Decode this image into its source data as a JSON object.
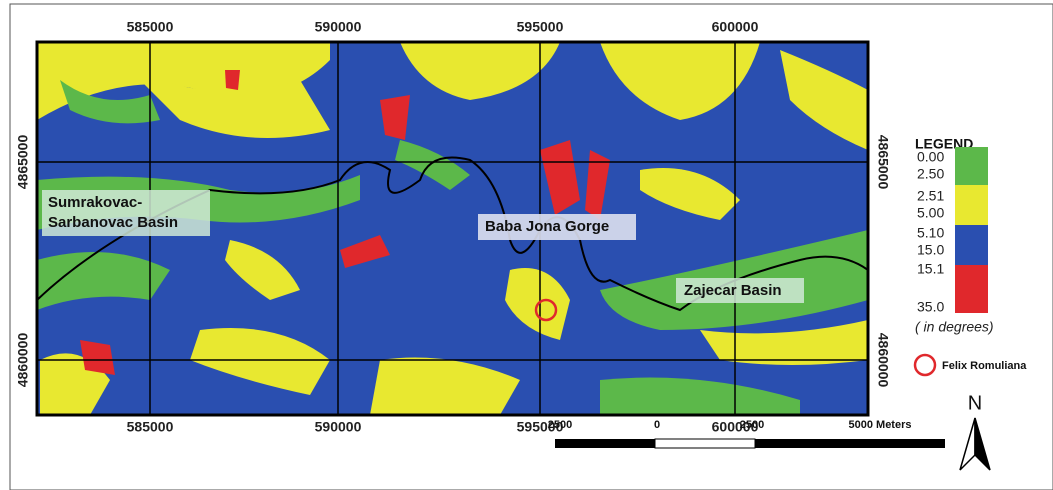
{
  "map": {
    "x_ticks_top": [
      "585000",
      "590000",
      "595000",
      "600000"
    ],
    "x_ticks_bottom": [
      "585000",
      "590000",
      "595000",
      "600000"
    ],
    "y_ticks_left": [
      "4865000",
      "4860000"
    ],
    "y_ticks_right": [
      "4865000",
      "4860000"
    ],
    "places": [
      {
        "lines": [
          "Sumrakovac-",
          "Sarbanovac Basin"
        ]
      },
      {
        "lines": [
          "Baba Jona Gorge"
        ]
      },
      {
        "lines": [
          "Zajecar Basin"
        ]
      }
    ],
    "legend": {
      "title": "LEGEND",
      "classes": [
        {
          "from": "0.00",
          "to": "2.50"
        },
        {
          "from": "2.51",
          "to": "5.00"
        },
        {
          "from": "5.10",
          "to": "15.0"
        },
        {
          "from": "15.1",
          "to": "35.0"
        }
      ],
      "unit": "( in degrees)",
      "marker_label": "Felix Romuliana"
    },
    "scale": {
      "labels": [
        "2500",
        "0",
        "2500",
        "5000 Meters"
      ]
    },
    "north": "N"
  }
}
